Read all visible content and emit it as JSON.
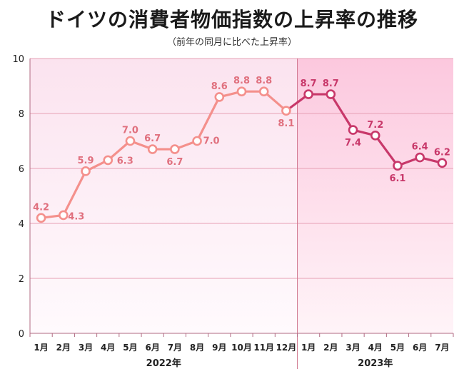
{
  "header": {
    "title": "ドイツの消費者物価指数の上昇率の推移",
    "subtitle": "（前年の同月に比べた上昇率）"
  },
  "colors": {
    "series_2022": "#f4908c",
    "series_2023": "#c8386a",
    "label_2022": "#e0707e",
    "label_2023": "#c8386a",
    "bg_2022": "#fbe3ef",
    "bg_2023": "#fcc8de",
    "grid": "#e6a0b4"
  },
  "chart_data": {
    "type": "line",
    "title": "ドイツの消費者物価指数の上昇率の推移",
    "subtitle": "（前年の同月に比べた上昇率）",
    "ylim": [
      0,
      10
    ],
    "y_ticks": [
      "0",
      "2",
      "4",
      "6",
      "8",
      "10"
    ],
    "grid": true,
    "categories": [
      "1月",
      "2月",
      "3月",
      "4月",
      "5月",
      "6月",
      "7月",
      "8月",
      "9月",
      "10月",
      "11月",
      "12月",
      "1月",
      "2月",
      "3月",
      "4月",
      "5月",
      "6月",
      "7月"
    ],
    "year_groups": [
      {
        "label": "2022年",
        "start": 0,
        "end": 11
      },
      {
        "label": "2023年",
        "start": 12,
        "end": 18
      }
    ],
    "series": [
      {
        "values": [
          4.2,
          4.3,
          5.9,
          6.3,
          7.0,
          6.7,
          6.7,
          7.0,
          8.6,
          8.8,
          8.8,
          8.1,
          null,
          null,
          null,
          null,
          null,
          null,
          null
        ]
      },
      {
        "values": [
          null,
          null,
          null,
          null,
          null,
          null,
          null,
          null,
          null,
          null,
          null,
          8.1,
          8.7,
          8.7,
          7.4,
          7.2,
          6.1,
          6.4,
          6.2
        ]
      }
    ],
    "data_labels": [
      "4.2",
      "4.3",
      "5.9",
      "6.3",
      "7.0",
      "6.7",
      "6.7",
      "7.0",
      "8.6",
      "8.8",
      "8.8",
      "8.1",
      "8.7",
      "8.7",
      "7.4",
      "7.2",
      "6.1",
      "6.4",
      "6.2"
    ]
  }
}
